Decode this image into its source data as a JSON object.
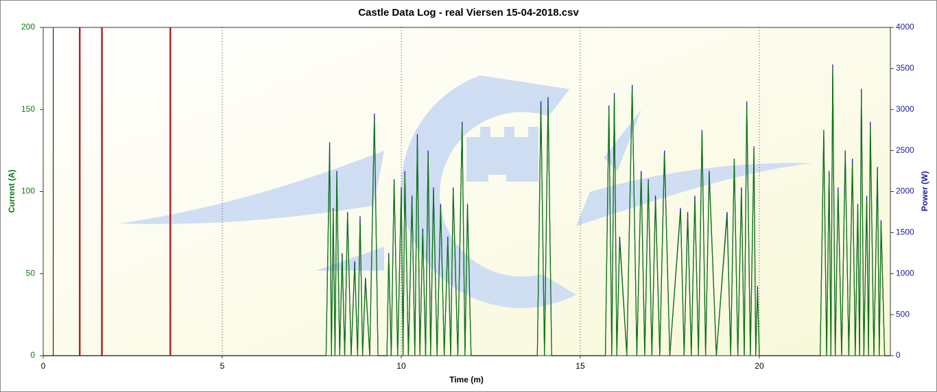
{
  "chart_data": {
    "type": "line",
    "title": "Castle Data Log - real Viersen 15-04-2018.csv",
    "x_label": "Time (m)",
    "y_label": "Current (A)",
    "y2_label": "Power (W)",
    "xlim": [
      0,
      23.66
    ],
    "xticks": [
      0,
      5,
      10,
      15,
      20
    ],
    "ylim": [
      0,
      200
    ],
    "yticks": [
      0,
      50,
      100,
      150,
      200
    ],
    "y2lim": [
      0,
      4000
    ],
    "y2ticks": [
      0,
      500,
      1000,
      1500,
      2000,
      2500,
      3000,
      3500,
      4000
    ],
    "grid": "x",
    "markers": [
      {
        "x": 0.28,
        "color": "#000000"
      },
      {
        "x": 1.02,
        "color": "#b22222"
      },
      {
        "x": 1.64,
        "color": "#b22222"
      },
      {
        "x": 3.55,
        "color": "#b22222"
      }
    ],
    "x": [
      0,
      7.9,
      8.0,
      8.05,
      8.1,
      8.15,
      8.2,
      8.28,
      8.35,
      8.42,
      8.5,
      8.6,
      8.7,
      8.78,
      8.85,
      8.92,
      9.0,
      9.12,
      9.25,
      9.35,
      9.6,
      9.65,
      9.72,
      9.8,
      9.9,
      10.0,
      10.05,
      10.1,
      10.2,
      10.3,
      10.38,
      10.45,
      10.52,
      10.6,
      10.68,
      10.75,
      10.82,
      10.9,
      11.0,
      11.1,
      11.2,
      11.3,
      11.38,
      11.45,
      11.58,
      11.7,
      11.78,
      11.85,
      11.95,
      13.8,
      13.9,
      14.0,
      14.1,
      14.2,
      15.7,
      15.8,
      15.88,
      15.95,
      16.02,
      16.1,
      16.3,
      16.45,
      16.58,
      16.7,
      16.8,
      16.9,
      17.0,
      17.1,
      17.22,
      17.35,
      17.5,
      17.8,
      17.9,
      18.0,
      18.1,
      18.2,
      18.3,
      18.4,
      18.5,
      18.6,
      18.8,
      19.1,
      19.2,
      19.3,
      19.4,
      19.5,
      19.58,
      19.65,
      19.75,
      19.85,
      19.9,
      19.95,
      20.0,
      21.7,
      21.8,
      21.88,
      21.95,
      22.0,
      22.05,
      22.12,
      22.2,
      22.3,
      22.4,
      22.5,
      22.6,
      22.68,
      22.75,
      22.8,
      22.85,
      22.92,
      23.0,
      23.05,
      23.1,
      23.2,
      23.3,
      23.35,
      23.4,
      23.5,
      23.66
    ],
    "series": [
      {
        "name": "Power (W)",
        "color": "#1a1aa0",
        "axis": "y2",
        "values": [
          0,
          0,
          2600,
          0,
          1800,
          0,
          2250,
          0,
          1250,
          0,
          1750,
          0,
          1150,
          0,
          1700,
          0,
          950,
          0,
          2950,
          0,
          0,
          1250,
          0,
          2150,
          0,
          2050,
          0,
          2250,
          0,
          1950,
          0,
          2700,
          0,
          1550,
          0,
          2500,
          0,
          2050,
          0,
          1850,
          0,
          1450,
          0,
          2050,
          0,
          2850,
          0,
          1850,
          0,
          0,
          3100,
          0,
          3150,
          0,
          0,
          3050,
          0,
          3200,
          0,
          1450,
          0,
          3300,
          0,
          2250,
          0,
          2150,
          0,
          1950,
          0,
          2500,
          0,
          1800,
          0,
          1750,
          0,
          1950,
          0,
          2750,
          0,
          2250,
          0,
          1750,
          0,
          2400,
          0,
          2050,
          0,
          3100,
          0,
          2550,
          0,
          850,
          0,
          0,
          2750,
          0,
          2250,
          0,
          3550,
          0,
          2050,
          0,
          2500,
          0,
          2400,
          0,
          1850,
          0,
          3250,
          0,
          1950,
          0,
          2850,
          0,
          2300,
          0,
          1650,
          0,
          0
        ]
      },
      {
        "name": "Current (A)",
        "color": "#0a7a0a",
        "values": [
          0,
          0,
          126,
          0,
          88,
          0,
          110,
          0,
          60,
          0,
          85,
          0,
          55,
          0,
          82,
          0,
          45,
          0,
          144,
          0,
          0,
          60,
          0,
          106,
          0,
          100,
          0,
          110,
          0,
          95,
          0,
          131,
          0,
          75,
          0,
          122,
          0,
          100,
          0,
          90,
          0,
          70,
          0,
          100,
          0,
          141,
          0,
          90,
          0,
          0,
          152,
          0,
          154,
          0,
          0,
          150,
          0,
          157,
          0,
          70,
          0,
          163,
          0,
          110,
          0,
          106,
          0,
          95,
          0,
          122,
          0,
          88,
          0,
          85,
          0,
          95,
          0,
          136,
          0,
          110,
          0,
          85,
          0,
          119,
          0,
          100,
          0,
          152,
          0,
          125,
          0,
          40,
          0,
          0,
          135,
          0,
          110,
          0,
          175,
          0,
          100,
          0,
          122,
          0,
          117,
          0,
          90,
          0,
          159,
          0,
          95,
          0,
          139,
          0,
          112,
          0,
          80,
          0,
          0
        ]
      }
    ]
  }
}
